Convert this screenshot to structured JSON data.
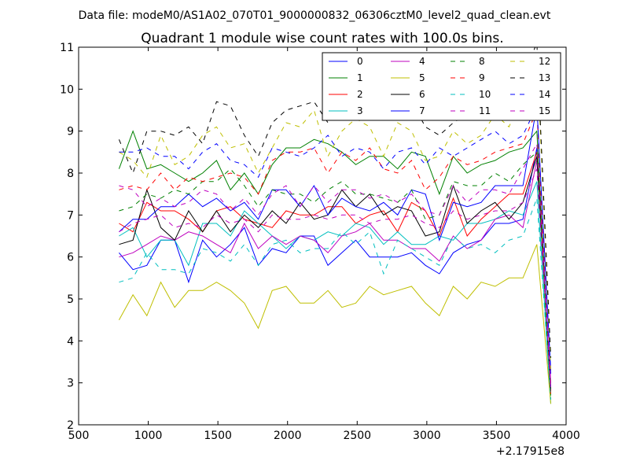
{
  "chart_data": {
    "type": "line",
    "suptitle": "Data file: modeM0/AS1A02_070T01_9000000832_06306cztM0_level2_quad_clean.evt",
    "title": "Quadrant 1 module wise count rates with 100.0s bins.",
    "xlabel": "",
    "ylabel": "",
    "x_offset_label": "+2.17915e8",
    "xlim": [
      500,
      4000
    ],
    "ylim": [
      2,
      11
    ],
    "xticks": [
      500,
      1000,
      1500,
      2000,
      2500,
      3000,
      3500,
      4000
    ],
    "yticks": [
      2,
      3,
      4,
      5,
      6,
      7,
      8,
      9,
      10,
      11
    ],
    "x": [
      790,
      890,
      990,
      1090,
      1190,
      1290,
      1390,
      1490,
      1590,
      1690,
      1790,
      1890,
      1990,
      2090,
      2190,
      2290,
      2390,
      2490,
      2590,
      2690,
      2790,
      2890,
      2990,
      3090,
      3190,
      3290,
      3390,
      3490,
      3590,
      3690,
      3790,
      3890
    ],
    "legend_position": "top-right",
    "grid": false,
    "series": [
      {
        "name": "0",
        "color": "#0000ff",
        "dash": "solid",
        "values": [
          6.1,
          5.7,
          5.8,
          6.4,
          6.4,
          5.4,
          6.4,
          6.0,
          6.3,
          6.7,
          5.8,
          6.2,
          6.1,
          6.5,
          6.5,
          5.8,
          6.1,
          6.4,
          6.0,
          6.0,
          6.0,
          6.1,
          5.8,
          5.6,
          6.1,
          6.3,
          6.4,
          6.8,
          6.8,
          6.9,
          8.6,
          2.9
        ]
      },
      {
        "name": "1",
        "color": "#008000",
        "dash": "solid",
        "values": [
          8.1,
          9.0,
          8.1,
          8.2,
          8.0,
          7.8,
          8.0,
          8.3,
          7.6,
          8.0,
          7.5,
          8.2,
          8.6,
          8.6,
          8.8,
          8.7,
          8.5,
          8.2,
          8.4,
          8.4,
          8.1,
          8.5,
          8.4,
          7.5,
          8.4,
          8.0,
          8.2,
          8.3,
          8.5,
          8.6,
          9.0,
          2.7
        ]
      },
      {
        "name": "2",
        "color": "#ff0000",
        "dash": "solid",
        "values": [
          6.8,
          6.6,
          7.3,
          7.1,
          7.1,
          6.9,
          6.6,
          7.1,
          7.2,
          6.9,
          6.8,
          6.7,
          7.1,
          7.0,
          7.0,
          7.2,
          7.2,
          6.8,
          7.0,
          7.1,
          6.6,
          7.3,
          7.1,
          6.5,
          7.4,
          6.5,
          6.9,
          7.2,
          7.5,
          7.5,
          8.5,
          2.8
        ]
      },
      {
        "name": "3",
        "color": "#00bfbf",
        "dash": "solid",
        "values": [
          6.5,
          6.7,
          6.0,
          6.4,
          6.4,
          5.8,
          6.8,
          6.8,
          6.5,
          7.1,
          6.8,
          6.5,
          6.2,
          6.5,
          6.4,
          6.6,
          6.5,
          6.8,
          6.7,
          6.3,
          6.6,
          6.3,
          6.3,
          6.5,
          6.4,
          6.8,
          6.8,
          6.9,
          7.1,
          7.0,
          7.8,
          2.5
        ]
      },
      {
        "name": "4",
        "color": "#bf00bf",
        "dash": "solid",
        "values": [
          6.0,
          6.1,
          6.3,
          6.5,
          6.4,
          6.6,
          6.5,
          6.3,
          6.1,
          6.8,
          6.2,
          6.5,
          6.3,
          6.5,
          6.4,
          6.1,
          6.5,
          6.6,
          6.8,
          6.4,
          6.4,
          6.2,
          6.2,
          5.9,
          6.5,
          6.2,
          6.4,
          6.9,
          7.0,
          6.7,
          8.3,
          3.0
        ]
      },
      {
        "name": "5",
        "color": "#bfbf00",
        "dash": "solid",
        "values": [
          4.5,
          5.1,
          4.6,
          5.4,
          4.8,
          5.2,
          5.2,
          5.4,
          5.2,
          4.9,
          4.3,
          5.2,
          5.3,
          4.9,
          4.9,
          5.2,
          4.8,
          4.9,
          5.3,
          5.1,
          5.2,
          5.3,
          4.9,
          4.6,
          5.3,
          5.0,
          5.4,
          5.3,
          5.5,
          5.5,
          6.3,
          2.5
        ]
      },
      {
        "name": "6",
        "color": "#000000",
        "dash": "solid",
        "values": [
          6.3,
          6.4,
          7.6,
          6.7,
          6.4,
          7.1,
          6.6,
          7.1,
          6.6,
          7.0,
          6.7,
          7.1,
          6.8,
          7.3,
          6.9,
          7.0,
          7.6,
          7.2,
          7.5,
          7.0,
          7.2,
          7.1,
          6.5,
          6.6,
          7.7,
          6.8,
          7.1,
          7.3,
          6.9,
          7.3,
          8.4,
          2.8
        ]
      },
      {
        "name": "7",
        "color": "#0000ff",
        "dash": "solid",
        "values": [
          6.6,
          6.9,
          6.9,
          7.2,
          7.2,
          7.5,
          7.2,
          7.4,
          7.1,
          7.3,
          6.9,
          7.6,
          7.6,
          7.2,
          7.7,
          7.0,
          7.4,
          7.2,
          7.1,
          7.3,
          7.0,
          7.6,
          7.5,
          6.4,
          7.3,
          7.2,
          7.3,
          7.7,
          7.7,
          7.7,
          9.6,
          3.3
        ]
      },
      {
        "name": "8",
        "color": "#008000",
        "dash": "dashed",
        "values": [
          7.1,
          7.2,
          7.5,
          7.4,
          7.6,
          7.5,
          7.8,
          7.8,
          8.1,
          7.7,
          7.2,
          7.6,
          7.5,
          7.5,
          7.3,
          7.6,
          7.8,
          7.5,
          7.5,
          7.4,
          7.3,
          7.6,
          6.9,
          7.0,
          7.8,
          7.7,
          7.7,
          8.0,
          7.8,
          8.2,
          8.5,
          2.6
        ]
      },
      {
        "name": "9",
        "color": "#ff0000",
        "dash": "dashed",
        "values": [
          7.6,
          7.7,
          7.6,
          8.0,
          7.6,
          7.9,
          7.8,
          7.9,
          8.0,
          7.9,
          7.5,
          8.3,
          8.5,
          8.5,
          8.6,
          8.0,
          8.5,
          8.3,
          8.6,
          8.1,
          8.0,
          8.3,
          7.6,
          7.9,
          8.4,
          8.2,
          8.3,
          8.5,
          8.6,
          8.7,
          9.5,
          2.7
        ]
      },
      {
        "name": "10",
        "color": "#00bfbf",
        "dash": "dashed",
        "values": [
          5.4,
          5.5,
          6.1,
          5.7,
          5.7,
          5.6,
          6.2,
          6.1,
          5.9,
          6.3,
          5.8,
          6.3,
          6.4,
          6.1,
          6.2,
          6.2,
          6.6,
          6.3,
          6.6,
          5.6,
          6.4,
          6.2,
          6.0,
          5.8,
          6.5,
          6.2,
          6.3,
          6.1,
          6.4,
          6.5,
          7.4,
          2.6
        ]
      },
      {
        "name": "11",
        "color": "#bf00bf",
        "dash": "dashed",
        "values": [
          7.7,
          7.6,
          7.2,
          7.4,
          7.2,
          7.3,
          7.6,
          7.5,
          7.1,
          7.4,
          7.0,
          7.5,
          7.7,
          7.2,
          7.7,
          7.3,
          7.6,
          7.6,
          7.4,
          7.5,
          7.3,
          7.5,
          7.1,
          7.0,
          7.7,
          7.3,
          7.6,
          7.6,
          7.5,
          8.1,
          8.7,
          3.0
        ]
      },
      {
        "name": "12",
        "color": "#bfbf00",
        "dash": "dashed",
        "values": [
          8.5,
          8.3,
          7.9,
          8.9,
          8.2,
          8.4,
          8.9,
          9.1,
          8.6,
          8.7,
          8.0,
          8.6,
          9.2,
          9.1,
          9.5,
          8.4,
          9.0,
          9.3,
          9.1,
          8.4,
          9.2,
          9.0,
          8.3,
          8.4,
          9.0,
          8.7,
          8.9,
          9.4,
          9.1,
          9.9,
          10.9,
          3.3
        ]
      },
      {
        "name": "13",
        "color": "#000000",
        "dash": "dashed",
        "values": [
          8.8,
          8.0,
          9.0,
          9.0,
          8.9,
          9.1,
          8.7,
          9.7,
          9.6,
          8.9,
          8.4,
          9.2,
          9.5,
          9.6,
          9.7,
          9.2,
          9.5,
          9.6,
          9.5,
          9.3,
          9.6,
          9.7,
          9.1,
          8.9,
          9.2,
          9.4,
          9.6,
          9.8,
          9.8,
          10.3,
          11.1,
          3.6
        ]
      },
      {
        "name": "14",
        "color": "#0000ff",
        "dash": "dashed",
        "values": [
          8.5,
          8.5,
          8.6,
          8.4,
          8.4,
          8.1,
          8.5,
          8.7,
          8.3,
          8.2,
          7.9,
          8.6,
          8.5,
          8.4,
          8.6,
          8.9,
          8.4,
          8.6,
          8.5,
          8.1,
          8.5,
          8.6,
          8.2,
          8.6,
          8.4,
          8.6,
          8.8,
          9.0,
          8.7,
          8.9,
          9.6,
          3.2
        ]
      },
      {
        "name": "15",
        "color": "#bf00bf",
        "dash": "dashed",
        "values": [
          6.6,
          6.8,
          6.9,
          7.0,
          6.7,
          6.8,
          6.7,
          7.0,
          6.8,
          6.9,
          6.6,
          7.0,
          6.9,
          6.9,
          7.0,
          6.9,
          7.0,
          7.0,
          6.8,
          6.9,
          6.9,
          7.0,
          6.8,
          6.7,
          7.1,
          6.9,
          7.0,
          7.1,
          7.1,
          7.3,
          8.1,
          2.9
        ]
      }
    ]
  }
}
